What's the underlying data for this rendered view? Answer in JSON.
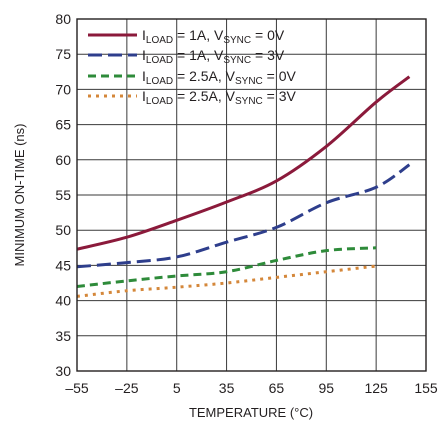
{
  "chart_data": {
    "type": "line",
    "title": "",
    "xlabel": "TEMPERATURE (°C)",
    "ylabel": "MINIMUM ON-TIME (ns)",
    "xlim": [
      -55,
      155
    ],
    "ylim": [
      30,
      80
    ],
    "x_ticks": [
      -55,
      -25,
      5,
      35,
      65,
      95,
      125,
      155
    ],
    "x_tick_labels": [
      "–55",
      "–25",
      "5",
      "35",
      "65",
      "95",
      "125",
      "155"
    ],
    "y_ticks": [
      30,
      35,
      40,
      45,
      50,
      55,
      60,
      65,
      70,
      75,
      80
    ],
    "y_tick_labels": [
      "30",
      "35",
      "40",
      "45",
      "50",
      "55",
      "60",
      "65",
      "70",
      "75",
      "80"
    ],
    "grid": true,
    "legend_position": "top-left",
    "series": [
      {
        "legend": {
          "prefix": "I",
          "sub1": "LOAD",
          "mid": " = 1A, V",
          "sub2": "SYNC",
          "suffix": " = 0V"
        },
        "color": "#8b1a3b",
        "dash": "solid",
        "x": [
          -55,
          -25,
          5,
          35,
          65,
          95,
          125,
          145
        ],
        "y": [
          47.3,
          49.0,
          51.4,
          54.0,
          57.0,
          61.9,
          68.2,
          71.8
        ]
      },
      {
        "legend": {
          "prefix": "I",
          "sub1": "LOAD",
          "mid": " = 1A, V",
          "sub2": "SYNC",
          "suffix": " = 3V"
        },
        "color": "#2e3e8c",
        "dash": "long-dash",
        "x": [
          -55,
          -25,
          5,
          35,
          65,
          95,
          125,
          145
        ],
        "y": [
          44.8,
          45.4,
          46.2,
          48.3,
          50.4,
          53.9,
          56.1,
          59.3
        ]
      },
      {
        "legend": {
          "prefix": "I",
          "sub1": "LOAD",
          "mid": " = 2.5A, V",
          "sub2": "SYNC",
          "suffix": " = 0V"
        },
        "color": "#2e8b3a",
        "dash": "medium-dash",
        "x": [
          -55,
          -25,
          5,
          35,
          65,
          95,
          125
        ],
        "y": [
          42.0,
          42.8,
          43.5,
          44.1,
          45.7,
          47.1,
          47.5
        ]
      },
      {
        "legend": {
          "prefix": "I",
          "sub1": "LOAD",
          "mid": " = 2.5A, V",
          "sub2": "SYNC",
          "suffix": " = 3V"
        },
        "color": "#d4873a",
        "dash": "dotted",
        "x": [
          -55,
          -25,
          5,
          35,
          65,
          95,
          125
        ],
        "y": [
          40.6,
          41.4,
          41.9,
          42.5,
          43.3,
          44.1,
          44.9
        ]
      }
    ]
  }
}
